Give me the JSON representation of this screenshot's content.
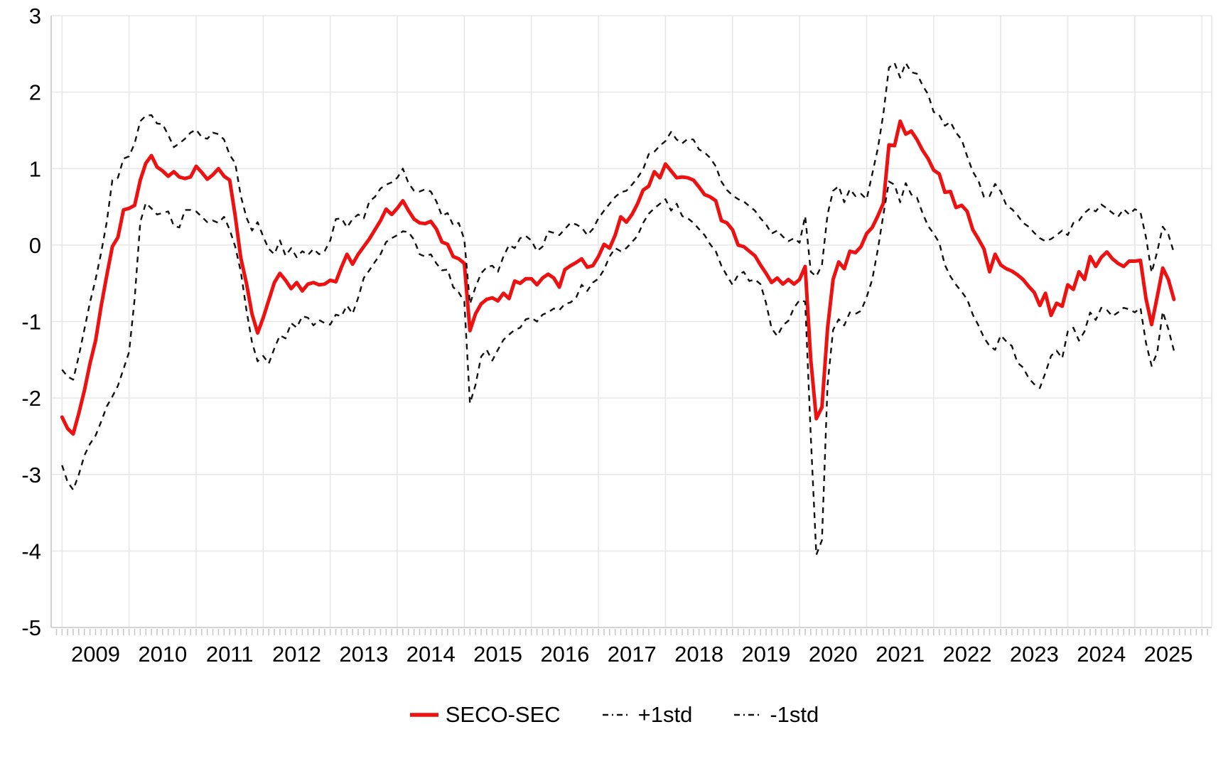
{
  "chart_data": {
    "type": "line",
    "title": "",
    "xlabel": "",
    "ylabel": "",
    "ylim": [
      -5,
      3
    ],
    "grid": true,
    "legend_position": "bottom-center",
    "x_start": "2009-01",
    "x_end": "2025-08",
    "x_frequency": "monthly",
    "x_year_labels": [
      "2009",
      "2010",
      "2011",
      "2012",
      "2013",
      "2014",
      "2015",
      "2016",
      "2017",
      "2018",
      "2019",
      "2020",
      "2021",
      "2022",
      "2023",
      "2024",
      "2025"
    ],
    "y_tick_labels": [
      "3",
      "2",
      "1",
      "0",
      "-1",
      "-2",
      "-3",
      "-4",
      "-5"
    ],
    "y_ticks": [
      3,
      2,
      1,
      0,
      -1,
      -2,
      -3,
      -4,
      -5
    ],
    "gridline_years": [
      2009,
      2010,
      2011,
      2012,
      2013,
      2014,
      2015,
      2016,
      2017,
      2018,
      2019,
      2020,
      2021,
      2022,
      2023,
      2024,
      2025,
      2026
    ],
    "colors": {
      "seco_sec": "#ee1111",
      "std_band": "#111111",
      "grid": "#e7e7e7",
      "axis": "#cfcfcf",
      "tick": "#c9c9c9",
      "text": "#000000"
    },
    "series": [
      {
        "name": "SECO-SEC",
        "style": "solid",
        "color": "#ee1111",
        "width": 5,
        "values": [
          -2.25,
          -2.4,
          -2.47,
          -2.2,
          -1.9,
          -1.55,
          -1.25,
          -0.8,
          -0.4,
          -0.02,
          0.1,
          0.46,
          0.48,
          0.52,
          0.85,
          1.07,
          1.17,
          1.02,
          0.97,
          0.9,
          0.96,
          0.89,
          0.87,
          0.89,
          1.03,
          0.95,
          0.86,
          0.92,
          1.0,
          0.9,
          0.85,
          0.38,
          -0.17,
          -0.5,
          -0.9,
          -1.15,
          -0.95,
          -0.72,
          -0.49,
          -0.37,
          -0.46,
          -0.57,
          -0.49,
          -0.6,
          -0.51,
          -0.49,
          -0.52,
          -0.51,
          -0.46,
          -0.48,
          -0.29,
          -0.12,
          -0.25,
          -0.12,
          -0.02,
          0.08,
          0.2,
          0.32,
          0.47,
          0.4,
          0.48,
          0.58,
          0.45,
          0.34,
          0.29,
          0.28,
          0.31,
          0.21,
          0.04,
          0.01,
          -0.15,
          -0.18,
          -0.24,
          -1.12,
          -0.9,
          -0.77,
          -0.71,
          -0.69,
          -0.73,
          -0.63,
          -0.7,
          -0.47,
          -0.5,
          -0.44,
          -0.44,
          -0.52,
          -0.43,
          -0.38,
          -0.43,
          -0.55,
          -0.32,
          -0.27,
          -0.23,
          -0.18,
          -0.29,
          -0.27,
          -0.15,
          0.01,
          -0.04,
          0.13,
          0.37,
          0.3,
          0.4,
          0.54,
          0.72,
          0.77,
          0.96,
          0.88,
          1.06,
          0.97,
          0.88,
          0.89,
          0.88,
          0.85,
          0.76,
          0.66,
          0.63,
          0.58,
          0.32,
          0.29,
          0.2,
          0.0,
          -0.02,
          -0.08,
          -0.14,
          -0.26,
          -0.37,
          -0.49,
          -0.43,
          -0.51,
          -0.45,
          -0.51,
          -0.45,
          -0.28,
          -1.5,
          -2.27,
          -2.12,
          -1.09,
          -0.45,
          -0.22,
          -0.31,
          -0.08,
          -0.1,
          -0.02,
          0.15,
          0.23,
          0.38,
          0.55,
          1.31,
          1.3,
          1.62,
          1.45,
          1.49,
          1.38,
          1.24,
          1.13,
          0.98,
          0.93,
          0.69,
          0.7,
          0.49,
          0.52,
          0.44,
          0.2,
          0.08,
          -0.05,
          -0.35,
          -0.12,
          -0.26,
          -0.31,
          -0.34,
          -0.39,
          -0.45,
          -0.54,
          -0.62,
          -0.79,
          -0.63,
          -0.92,
          -0.76,
          -0.8,
          -0.52,
          -0.58,
          -0.35,
          -0.45,
          -0.15,
          -0.28,
          -0.16,
          -0.09,
          -0.18,
          -0.24,
          -0.28,
          -0.21,
          -0.21,
          -0.2,
          -0.7,
          -1.04,
          -0.68,
          -0.3,
          -0.45,
          -0.71
        ]
      },
      {
        "name": "+1std",
        "style": "dashed",
        "color": "#111111",
        "width": 2.4,
        "values": [
          -1.63,
          -1.72,
          -1.76,
          -1.45,
          -1.1,
          -0.75,
          -0.45,
          -0.1,
          0.3,
          0.85,
          0.88,
          1.13,
          1.16,
          1.33,
          1.62,
          1.69,
          1.7,
          1.59,
          1.58,
          1.44,
          1.28,
          1.33,
          1.39,
          1.47,
          1.51,
          1.41,
          1.39,
          1.47,
          1.45,
          1.38,
          1.18,
          1.07,
          0.64,
          0.36,
          0.19,
          0.3,
          0.11,
          -0.05,
          -0.12,
          0.06,
          -0.14,
          -0.04,
          -0.16,
          -0.08,
          -0.13,
          -0.05,
          -0.12,
          -0.08,
          0.06,
          0.34,
          0.35,
          0.23,
          0.34,
          0.4,
          0.35,
          0.57,
          0.63,
          0.74,
          0.79,
          0.82,
          0.88,
          1.0,
          0.81,
          0.71,
          0.7,
          0.73,
          0.7,
          0.57,
          0.38,
          0.42,
          0.26,
          0.29,
          0.07,
          -0.77,
          -0.55,
          -0.37,
          -0.29,
          -0.27,
          -0.35,
          -0.15,
          0.0,
          -0.04,
          0.09,
          0.12,
          0.06,
          -0.08,
          -0.02,
          0.18,
          0.16,
          0.13,
          0.21,
          0.29,
          0.27,
          0.23,
          0.13,
          0.21,
          0.35,
          0.45,
          0.54,
          0.63,
          0.69,
          0.71,
          0.79,
          0.88,
          0.99,
          1.19,
          1.22,
          1.3,
          1.36,
          1.48,
          1.38,
          1.33,
          1.39,
          1.38,
          1.25,
          1.21,
          1.14,
          1.03,
          0.83,
          0.72,
          0.65,
          0.6,
          0.57,
          0.51,
          0.45,
          0.35,
          0.27,
          0.15,
          0.19,
          0.11,
          0.05,
          0.09,
          0.03,
          0.38,
          -0.35,
          -0.41,
          -0.26,
          0.4,
          0.71,
          0.77,
          0.56,
          0.73,
          0.64,
          0.67,
          0.6,
          0.93,
          1.26,
          1.72,
          2.32,
          2.38,
          2.19,
          2.38,
          2.26,
          2.24,
          2.09,
          1.97,
          1.74,
          1.7,
          1.56,
          1.61,
          1.47,
          1.38,
          1.16,
          0.96,
          0.84,
          0.63,
          0.64,
          0.8,
          0.7,
          0.52,
          0.47,
          0.39,
          0.29,
          0.24,
          0.16,
          0.09,
          0.05,
          0.08,
          0.13,
          0.19,
          0.13,
          0.29,
          0.32,
          0.42,
          0.48,
          0.44,
          0.53,
          0.48,
          0.42,
          0.37,
          0.47,
          0.4,
          0.47,
          0.43,
          0.1,
          -0.36,
          -0.09,
          0.24,
          0.14,
          -0.1
        ]
      },
      {
        "name": "-1std",
        "style": "dashed",
        "color": "#111111",
        "width": 2.4,
        "values": [
          -2.88,
          -3.1,
          -3.2,
          -3.0,
          -2.75,
          -2.6,
          -2.49,
          -2.31,
          -2.11,
          -1.98,
          -1.84,
          -1.62,
          -1.4,
          -0.7,
          0.3,
          0.55,
          0.48,
          0.4,
          0.42,
          0.44,
          0.25,
          0.23,
          0.46,
          0.46,
          0.44,
          0.37,
          0.3,
          0.32,
          0.29,
          0.37,
          0.2,
          -0.02,
          -0.35,
          -0.85,
          -1.27,
          -1.52,
          -1.45,
          -1.55,
          -1.35,
          -1.18,
          -1.22,
          -1.02,
          -1.08,
          -0.93,
          -0.95,
          -1.05,
          -0.98,
          -1.02,
          -1.04,
          -0.91,
          -0.93,
          -0.79,
          -0.9,
          -0.69,
          -0.43,
          -0.33,
          -0.22,
          -0.12,
          0.04,
          0.09,
          0.13,
          0.18,
          0.17,
          0.07,
          -0.12,
          -0.15,
          -0.12,
          -0.24,
          -0.33,
          -0.32,
          -0.55,
          -0.62,
          -0.74,
          -2.07,
          -1.83,
          -1.46,
          -1.37,
          -1.51,
          -1.37,
          -1.24,
          -1.17,
          -1.11,
          -1.08,
          -0.97,
          -0.95,
          -1.0,
          -0.91,
          -0.88,
          -0.83,
          -0.85,
          -0.77,
          -0.75,
          -0.69,
          -0.52,
          -0.6,
          -0.49,
          -0.44,
          -0.32,
          -0.15,
          -0.04,
          -0.08,
          -0.04,
          0.04,
          0.12,
          0.29,
          0.41,
          0.48,
          0.54,
          0.6,
          0.45,
          0.54,
          0.38,
          0.35,
          0.29,
          0.21,
          0.13,
          0.01,
          -0.08,
          -0.27,
          -0.4,
          -0.52,
          -0.39,
          -0.35,
          -0.47,
          -0.45,
          -0.51,
          -0.76,
          -1.09,
          -1.19,
          -1.05,
          -0.99,
          -0.82,
          -0.72,
          -0.74,
          -2.5,
          -4.05,
          -3.86,
          -1.83,
          -1.11,
          -0.97,
          -1.05,
          -0.88,
          -0.9,
          -0.86,
          -0.68,
          -0.45,
          -0.06,
          0.4,
          0.83,
          0.79,
          0.56,
          0.81,
          0.66,
          0.62,
          0.42,
          0.25,
          0.15,
          0.03,
          -0.26,
          -0.41,
          -0.52,
          -0.61,
          -0.71,
          -0.91,
          -1.05,
          -1.21,
          -1.32,
          -1.37,
          -1.18,
          -1.26,
          -1.32,
          -1.54,
          -1.6,
          -1.74,
          -1.82,
          -1.87,
          -1.67,
          -1.45,
          -1.38,
          -1.48,
          -1.13,
          -1.08,
          -1.25,
          -1.13,
          -0.88,
          -0.98,
          -0.82,
          -0.85,
          -0.93,
          -0.88,
          -0.82,
          -0.84,
          -0.88,
          -0.82,
          -1.28,
          -1.58,
          -1.41,
          -0.87,
          -1.1,
          -1.38
        ]
      }
    ]
  },
  "legend": {
    "items": [
      {
        "label": "SECO-SEC",
        "swatch": "solid-red"
      },
      {
        "label": "+1std",
        "swatch": "dashed-black"
      },
      {
        "label": "-1std",
        "swatch": "dashed-black"
      }
    ]
  }
}
